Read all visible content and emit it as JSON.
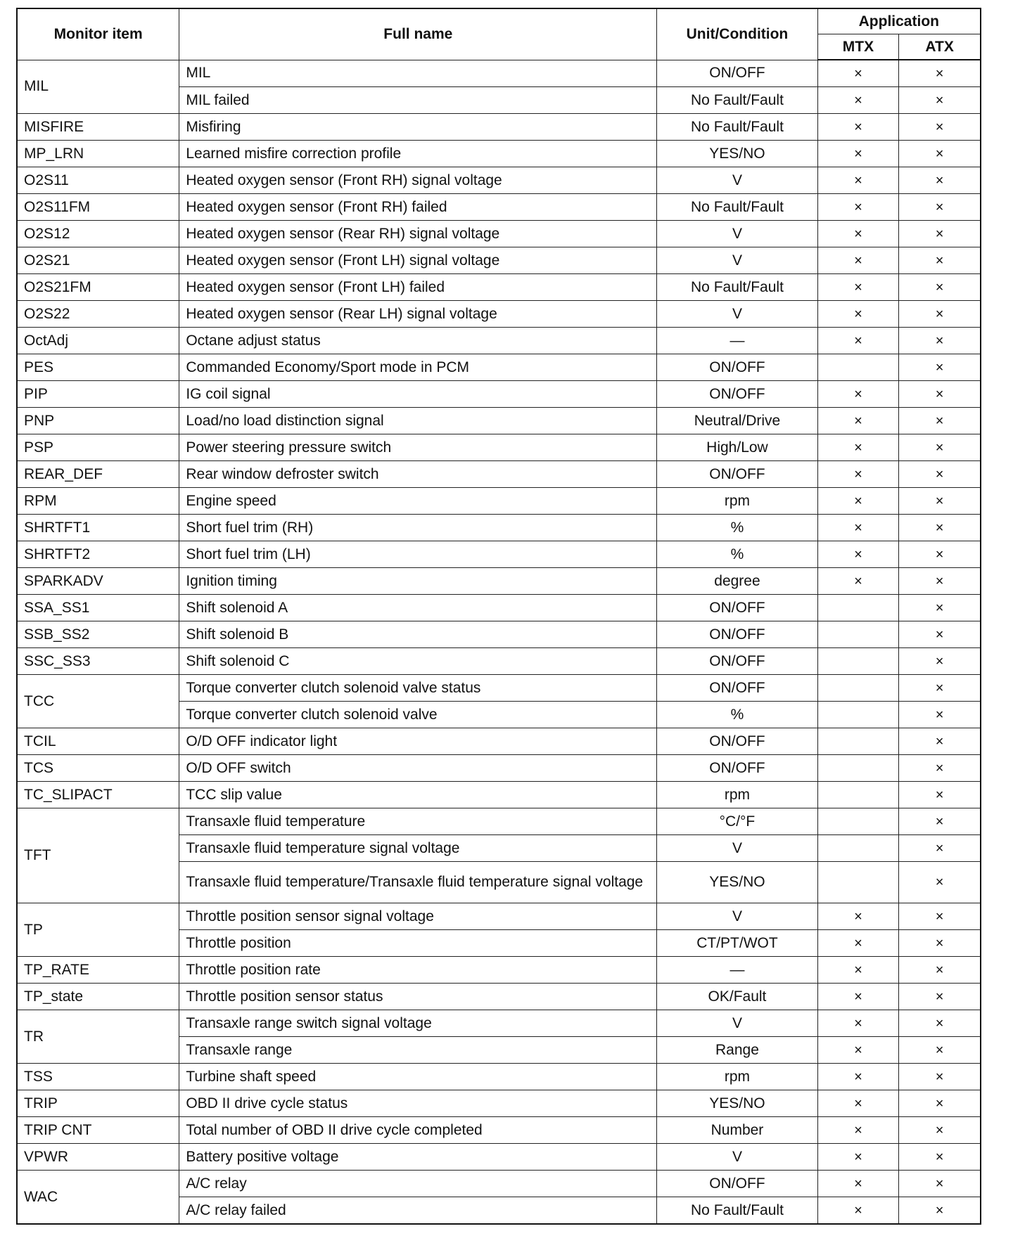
{
  "header": {
    "monitor_item": "Monitor item",
    "full_name": "Full name",
    "unit": "Unit/Condition",
    "application": "Application",
    "mtx": "MTX",
    "atx": "ATX"
  },
  "mark": "×",
  "rows": [
    {
      "item": "MIL",
      "subs": [
        {
          "full": "MIL",
          "unit": "ON/OFF",
          "mtx": true,
          "atx": true
        },
        {
          "full": "MIL failed",
          "unit": "No Fault/Fault",
          "mtx": true,
          "atx": true
        }
      ]
    },
    {
      "item": "MISFIRE",
      "subs": [
        {
          "full": "Misfiring",
          "unit": "No Fault/Fault",
          "mtx": true,
          "atx": true
        }
      ]
    },
    {
      "item": "MP_LRN",
      "subs": [
        {
          "full": "Learned misfire correction profile",
          "unit": "YES/NO",
          "mtx": true,
          "atx": true
        }
      ]
    },
    {
      "item": "O2S11",
      "subs": [
        {
          "full": "Heated oxygen sensor (Front RH) signal voltage",
          "unit": "V",
          "mtx": true,
          "atx": true
        }
      ]
    },
    {
      "item": "O2S11FM",
      "subs": [
        {
          "full": "Heated oxygen sensor (Front RH) failed",
          "unit": "No Fault/Fault",
          "mtx": true,
          "atx": true
        }
      ]
    },
    {
      "item": "O2S12",
      "subs": [
        {
          "full": "Heated oxygen sensor (Rear RH) signal voltage",
          "unit": "V",
          "mtx": true,
          "atx": true
        }
      ]
    },
    {
      "item": "O2S21",
      "subs": [
        {
          "full": "Heated oxygen sensor (Front LH) signal voltage",
          "unit": "V",
          "mtx": true,
          "atx": true
        }
      ]
    },
    {
      "item": "O2S21FM",
      "subs": [
        {
          "full": "Heated oxygen sensor (Front LH) failed",
          "unit": "No Fault/Fault",
          "mtx": true,
          "atx": true
        }
      ]
    },
    {
      "item": "O2S22",
      "subs": [
        {
          "full": "Heated oxygen sensor (Rear LH) signal voltage",
          "unit": "V",
          "mtx": true,
          "atx": true
        }
      ]
    },
    {
      "item": "OctAdj",
      "subs": [
        {
          "full": "Octane adjust status",
          "unit": "—",
          "mtx": true,
          "atx": true
        }
      ]
    },
    {
      "item": "PES",
      "subs": [
        {
          "full": "Commanded Economy/Sport mode in PCM",
          "unit": "ON/OFF",
          "mtx": false,
          "atx": true
        }
      ]
    },
    {
      "item": "PIP",
      "subs": [
        {
          "full": "IG coil signal",
          "unit": "ON/OFF",
          "mtx": true,
          "atx": true
        }
      ]
    },
    {
      "item": "PNP",
      "subs": [
        {
          "full": "Load/no load distinction signal",
          "unit": "Neutral/Drive",
          "mtx": true,
          "atx": true
        }
      ]
    },
    {
      "item": "PSP",
      "subs": [
        {
          "full": "Power steering pressure switch",
          "unit": "High/Low",
          "mtx": true,
          "atx": true
        }
      ]
    },
    {
      "item": "REAR_DEF",
      "subs": [
        {
          "full": "Rear window defroster switch",
          "unit": "ON/OFF",
          "mtx": true,
          "atx": true
        }
      ]
    },
    {
      "item": "RPM",
      "subs": [
        {
          "full": "Engine speed",
          "unit": "rpm",
          "mtx": true,
          "atx": true
        }
      ]
    },
    {
      "item": "SHRTFT1",
      "subs": [
        {
          "full": "Short fuel trim (RH)",
          "unit": "%",
          "mtx": true,
          "atx": true
        }
      ]
    },
    {
      "item": "SHRTFT2",
      "subs": [
        {
          "full": "Short fuel trim (LH)",
          "unit": "%",
          "mtx": true,
          "atx": true
        }
      ]
    },
    {
      "item": "SPARKADV",
      "subs": [
        {
          "full": "Ignition timing",
          "unit": "degree",
          "mtx": true,
          "atx": true
        }
      ]
    },
    {
      "item": "SSA_SS1",
      "subs": [
        {
          "full": "Shift solenoid A",
          "unit": "ON/OFF",
          "mtx": false,
          "atx": true
        }
      ]
    },
    {
      "item": "SSB_SS2",
      "subs": [
        {
          "full": "Shift solenoid B",
          "unit": "ON/OFF",
          "mtx": false,
          "atx": true
        }
      ]
    },
    {
      "item": "SSC_SS3",
      "subs": [
        {
          "full": "Shift solenoid C",
          "unit": "ON/OFF",
          "mtx": false,
          "atx": true
        }
      ]
    },
    {
      "item": "TCC",
      "subs": [
        {
          "full": "Torque converter clutch solenoid valve status",
          "unit": "ON/OFF",
          "mtx": false,
          "atx": true
        },
        {
          "full": "Torque converter clutch solenoid valve",
          "unit": "%",
          "mtx": false,
          "atx": true
        }
      ]
    },
    {
      "item": "TCIL",
      "subs": [
        {
          "full": "O/D OFF indicator light",
          "unit": "ON/OFF",
          "mtx": false,
          "atx": true
        }
      ]
    },
    {
      "item": "TCS",
      "subs": [
        {
          "full": "O/D OFF switch",
          "unit": "ON/OFF",
          "mtx": false,
          "atx": true
        }
      ]
    },
    {
      "item": "TC_SLIPACT",
      "subs": [
        {
          "full": "TCC slip value",
          "unit": "rpm",
          "mtx": false,
          "atx": true
        }
      ]
    },
    {
      "item": "TFT",
      "subs": [
        {
          "full": "Transaxle fluid temperature",
          "unit": "°C/°F",
          "mtx": false,
          "atx": true
        },
        {
          "full": "Transaxle fluid temperature signal voltage",
          "unit": "V",
          "mtx": false,
          "atx": true
        },
        {
          "full": "Transaxle fluid temperature/Transaxle fluid temperature signal voltage",
          "unit": "YES/NO",
          "mtx": false,
          "atx": true,
          "tall": true
        }
      ]
    },
    {
      "item": "TP",
      "subs": [
        {
          "full": "Throttle position sensor signal voltage",
          "unit": "V",
          "mtx": true,
          "atx": true
        },
        {
          "full": "Throttle position",
          "unit": "CT/PT/WOT",
          "mtx": true,
          "atx": true
        }
      ]
    },
    {
      "item": "TP_RATE",
      "subs": [
        {
          "full": "Throttle position rate",
          "unit": "—",
          "mtx": true,
          "atx": true
        }
      ]
    },
    {
      "item": "TP_state",
      "subs": [
        {
          "full": "Throttle position sensor status",
          "unit": "OK/Fault",
          "mtx": true,
          "atx": true
        }
      ]
    },
    {
      "item": "TR",
      "subs": [
        {
          "full": "Transaxle range switch signal voltage",
          "unit": "V",
          "mtx": true,
          "atx": true
        },
        {
          "full": "Transaxle range",
          "unit": "Range",
          "mtx": true,
          "atx": true
        }
      ]
    },
    {
      "item": "TSS",
      "subs": [
        {
          "full": "Turbine shaft speed",
          "unit": "rpm",
          "mtx": true,
          "atx": true
        }
      ]
    },
    {
      "item": "TRIP",
      "subs": [
        {
          "full": "OBD II drive cycle status",
          "unit": "YES/NO",
          "mtx": true,
          "atx": true
        }
      ]
    },
    {
      "item": "TRIP CNT",
      "subs": [
        {
          "full": "Total number of OBD II drive cycle completed",
          "unit": "Number",
          "mtx": true,
          "atx": true
        }
      ]
    },
    {
      "item": "VPWR",
      "subs": [
        {
          "full": "Battery positive voltage",
          "unit": "V",
          "mtx": true,
          "atx": true
        }
      ]
    },
    {
      "item": "WAC",
      "subs": [
        {
          "full": "A/C relay",
          "unit": "ON/OFF",
          "mtx": true,
          "atx": true
        },
        {
          "full": "A/C relay failed",
          "unit": "No Fault/Fault",
          "mtx": true,
          "atx": true
        }
      ]
    }
  ]
}
